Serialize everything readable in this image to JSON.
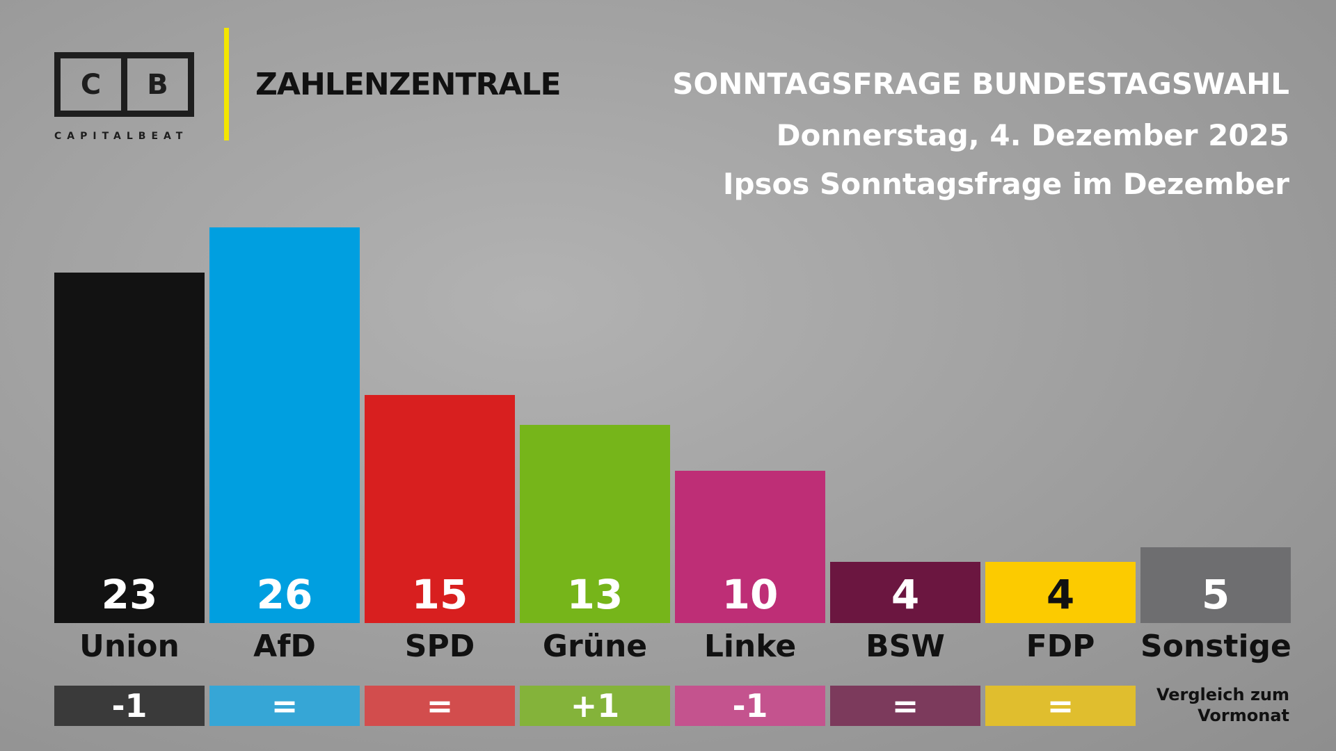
{
  "logo": {
    "letters": [
      "C",
      "B"
    ],
    "name": "CAPITALBEAT"
  },
  "brand": "ZAHLENZENTRALE",
  "header": {
    "title": "SONNTAGSFRAGE BUNDESTAGSWAHL",
    "date": "Donnerstag, 4. Dezember 2025",
    "subtitle": "Ipsos Sonntagsfrage im Dezember"
  },
  "comparison_label": [
    "Vergleich zum",
    "Vormonat"
  ],
  "chart_data": {
    "type": "bar",
    "title": "SONNTAGSFRAGE BUNDESTAGSWAHL",
    "categories": [
      "Union",
      "AfD",
      "SPD",
      "Grüne",
      "Linke",
      "BSW",
      "FDP",
      "Sonstige"
    ],
    "values": [
      23,
      26,
      15,
      13,
      10,
      4,
      4,
      5
    ],
    "changes": [
      "-1",
      "=",
      "=",
      "+1",
      "-1",
      "=",
      "=",
      null
    ],
    "colors": [
      "#121212",
      "#009fe0",
      "#d81f1f",
      "#76b51a",
      "#be2e76",
      "#6b1640",
      "#fccb00",
      "#6e6e70"
    ],
    "change_colors": [
      "#3a3a3a",
      "#36a6d6",
      "#d24d4d",
      "#84b33a",
      "#c4538e",
      "#7c3a5c",
      "#e0be2e",
      null
    ],
    "value_text_colors": [
      "#fff",
      "#fff",
      "#fff",
      "#fff",
      "#fff",
      "#fff",
      "#111",
      "#fff"
    ],
    "ylabel": "%",
    "ylim": [
      0,
      26
    ]
  }
}
